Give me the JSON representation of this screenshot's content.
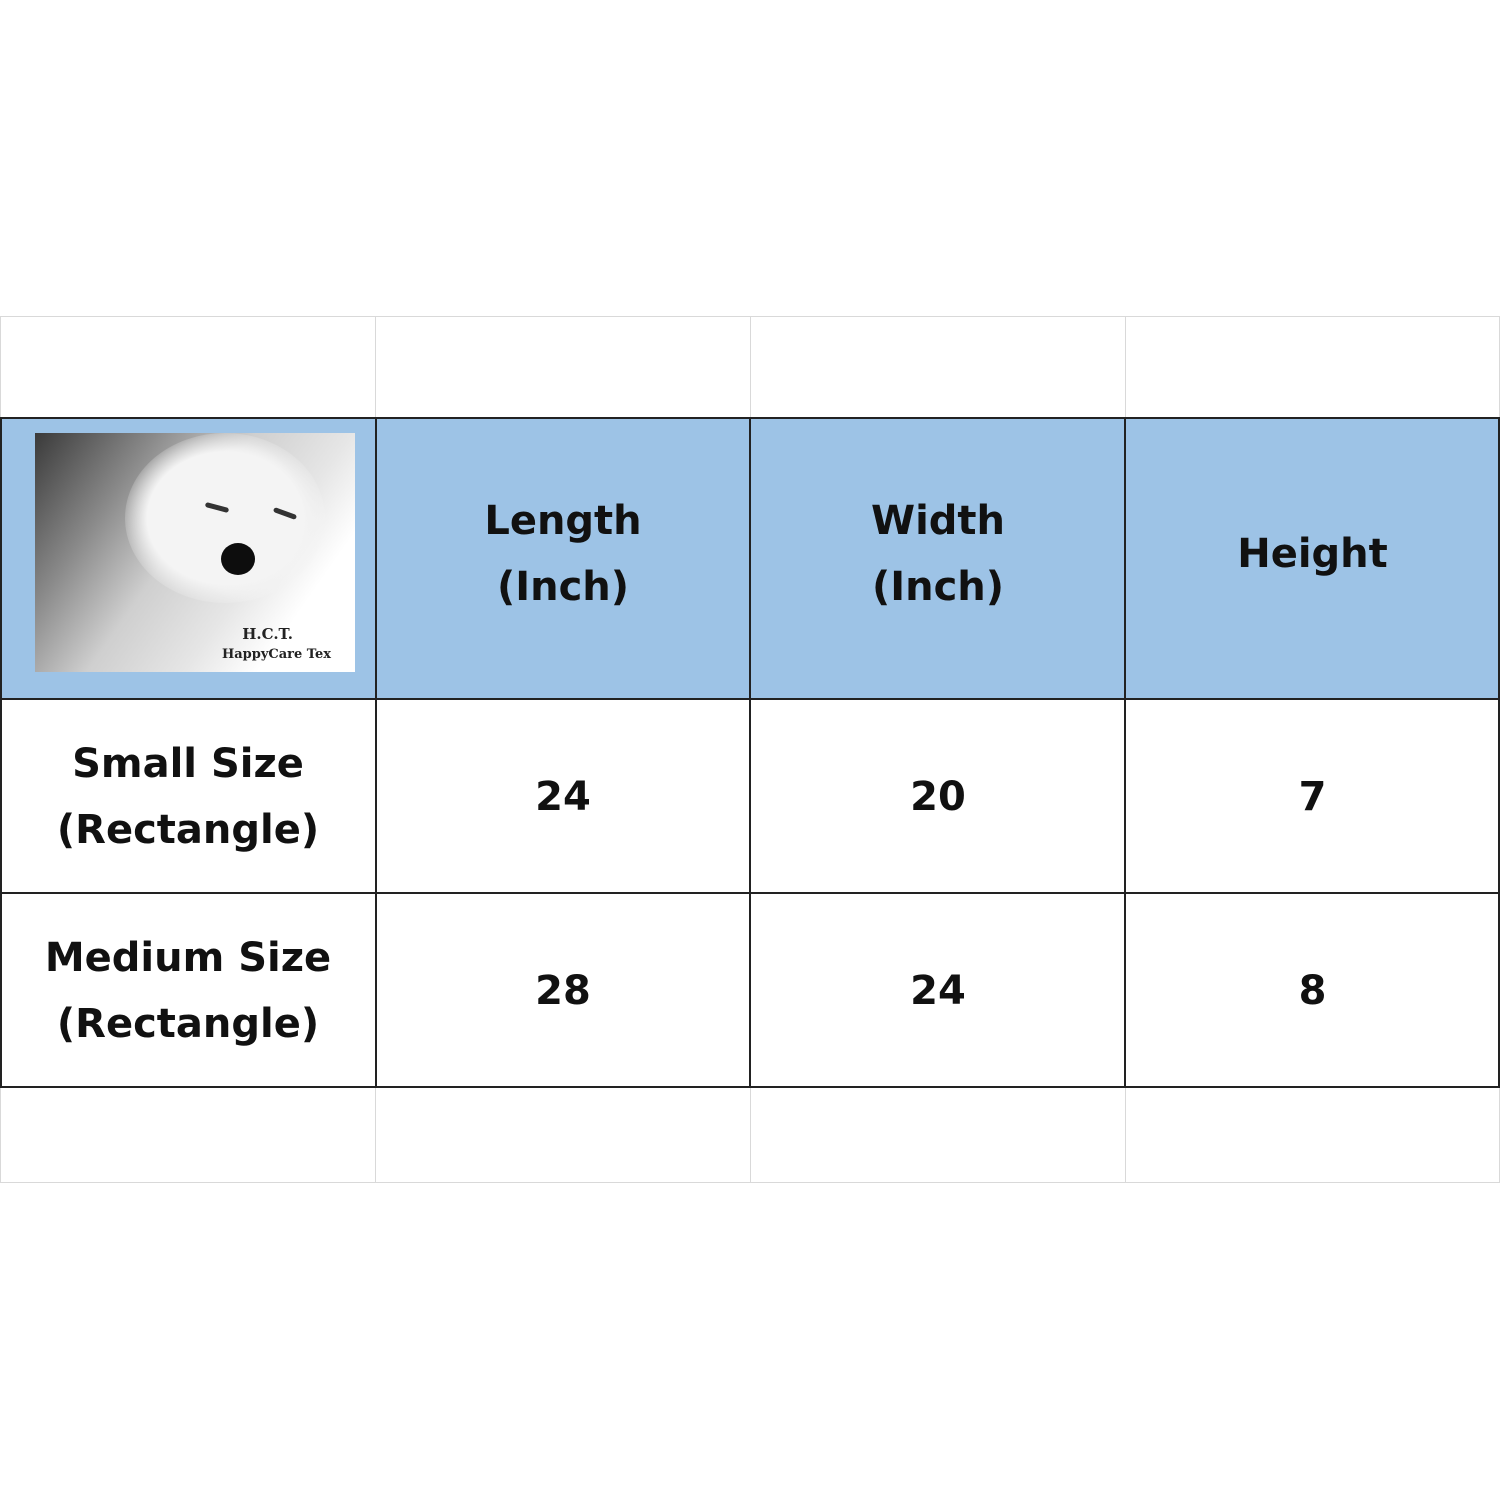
{
  "logo": {
    "line1": "H.C.T.",
    "line2": "HappyCare Tex"
  },
  "colors": {
    "header_bg": "#9dc3e6",
    "border": "#222222"
  },
  "table": {
    "headers": [
      {
        "line1": "Length",
        "line2": "(Inch)"
      },
      {
        "line1": "Width",
        "line2": "(Inch)"
      },
      {
        "line1": "Height",
        "line2": ""
      }
    ],
    "rows": [
      {
        "label1": "Small Size",
        "label2": "(Rectangle)",
        "length": "24",
        "width": "20",
        "height": "7"
      },
      {
        "label1": "Medium Size",
        "label2": "(Rectangle)",
        "length": "28",
        "width": "24",
        "height": "8"
      }
    ]
  }
}
